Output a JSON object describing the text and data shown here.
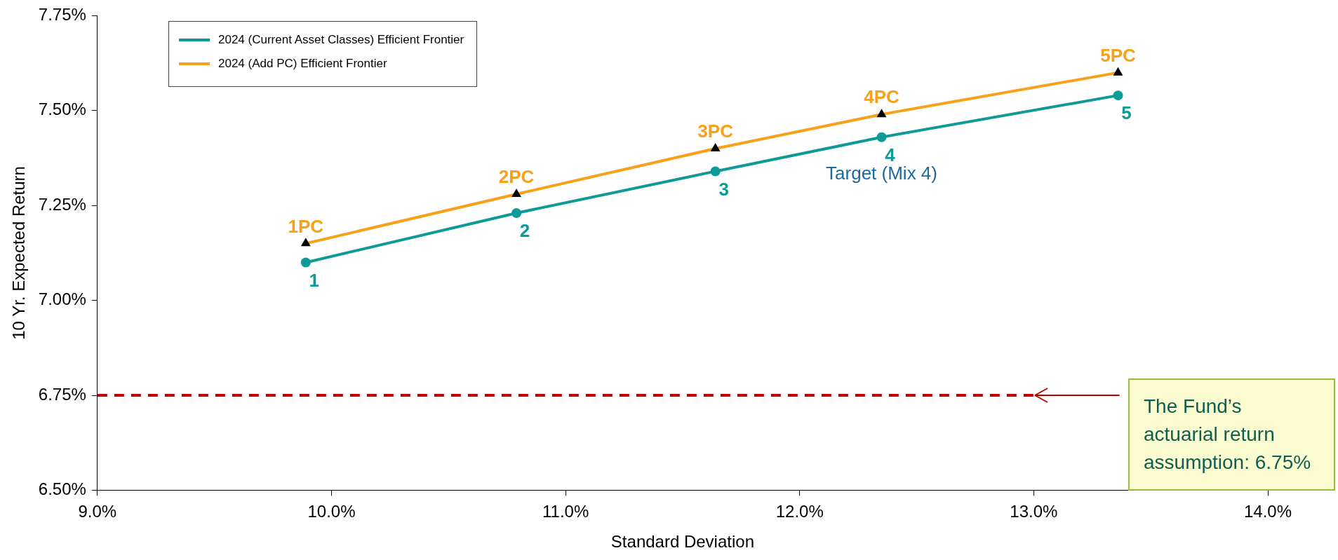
{
  "chart_data": {
    "type": "line",
    "xlabel": "Standard Deviation",
    "ylabel": "10 Yr. Expected Return",
    "xlim": [
      9.0,
      14.0
    ],
    "xticks": [
      {
        "value": 9,
        "label": "9.0%"
      },
      {
        "value": 10,
        "label": "10.0%"
      },
      {
        "value": 11,
        "label": "11.0%"
      },
      {
        "value": 12,
        "label": "12.0%"
      },
      {
        "value": 13,
        "label": "13.0%"
      },
      {
        "value": 14,
        "label": "14.0%"
      }
    ],
    "ylim": [
      6.5,
      7.75
    ],
    "yticks": [
      {
        "value": 6.5,
        "label": "6.50%"
      },
      {
        "value": 6.75,
        "label": "6.75%"
      },
      {
        "value": 7,
        "label": "7.00%"
      },
      {
        "value": 7.25,
        "label": "7.25%"
      },
      {
        "value": 7.5,
        "label": "7.50%"
      },
      {
        "value": 7.75,
        "label": "7.75%"
      }
    ],
    "series": [
      {
        "name": "2024 (Current Asset Classes) Efficient Frontier",
        "color": "#0e9a97",
        "marker": "circle",
        "x": [
          9.89,
          10.79,
          11.64,
          12.35,
          13.36
        ],
        "values": [
          7.1,
          7.23,
          7.34,
          7.43,
          7.54
        ]
      },
      {
        "name": "2024 (Add PC) Efficient Frontier",
        "color": "#f7a11a",
        "marker": "triangle",
        "x": [
          9.89,
          10.79,
          11.64,
          12.35,
          13.36
        ],
        "values": [
          7.15,
          7.28,
          7.4,
          7.49,
          7.6
        ]
      }
    ],
    "ref_lines": [
      {
        "axis": "y",
        "value": 6.75,
        "color": "#c00000",
        "line_style": "dashed"
      }
    ],
    "annotations": [
      {
        "text": "1",
        "x": 9.89,
        "y": 7.1
      },
      {
        "text": "2",
        "x": 10.79,
        "y": 7.23
      },
      {
        "text": "3",
        "x": 11.64,
        "y": 7.34
      },
      {
        "text": "4",
        "x": 12.35,
        "y": 7.43
      },
      {
        "text": "5",
        "x": 13.36,
        "y": 7.54
      },
      {
        "text": "1PC",
        "x": 9.89,
        "y": 7.15
      },
      {
        "text": "2PC",
        "x": 10.79,
        "y": 7.28
      },
      {
        "text": "3PC",
        "x": 11.64,
        "y": 7.4
      },
      {
        "text": "4PC",
        "x": 12.35,
        "y": 7.49
      },
      {
        "text": "5PC",
        "x": 13.36,
        "y": 7.6
      },
      {
        "text": "Target (Mix 4)",
        "x": 12.35,
        "y": 7.43
      },
      {
        "text": "The Fund’s actuarial return assumption: 6.75%",
        "x": 13.0,
        "y": 6.75
      }
    ],
    "legend": "top left",
    "grid": false
  }
}
